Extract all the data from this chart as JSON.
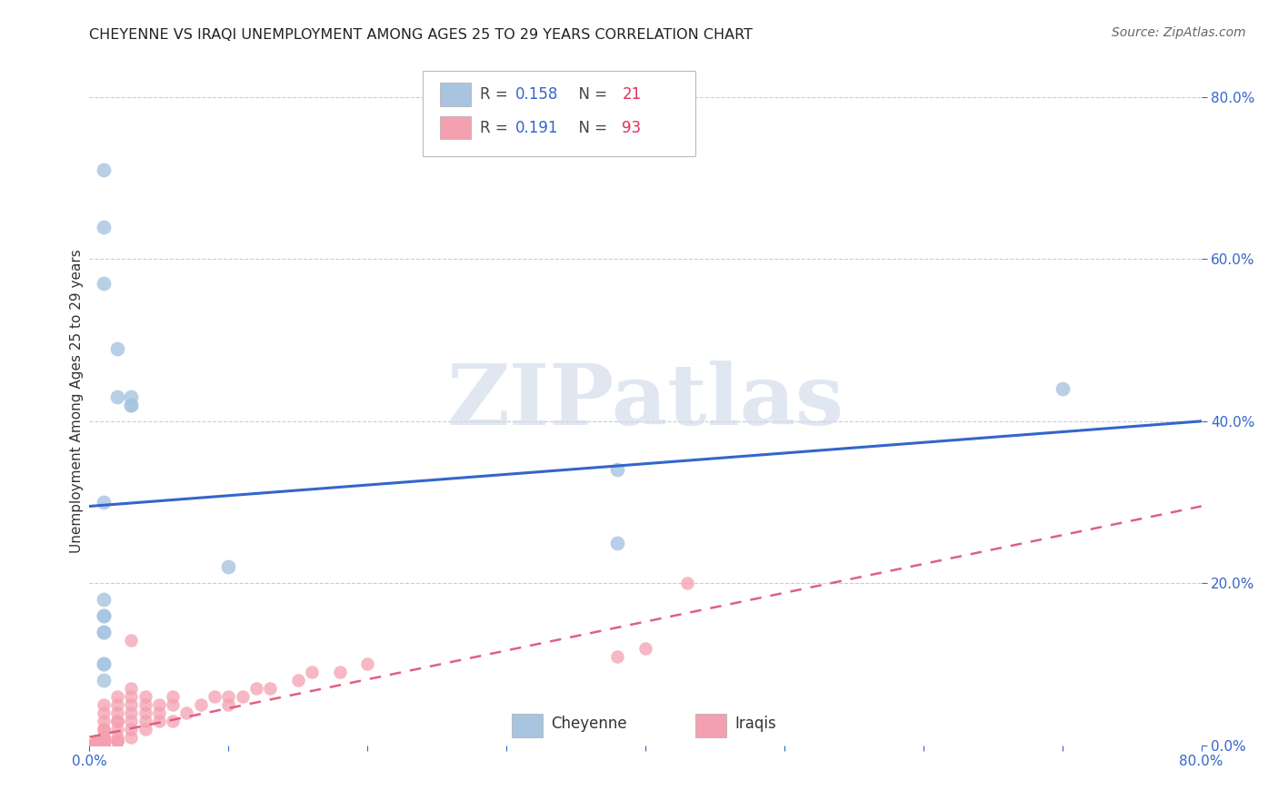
{
  "title": "CHEYENNE VS IRAQI UNEMPLOYMENT AMONG AGES 25 TO 29 YEARS CORRELATION CHART",
  "source": "Source: ZipAtlas.com",
  "ylabel": "Unemployment Among Ages 25 to 29 years",
  "xlim": [
    0.0,
    0.8
  ],
  "ylim": [
    0.0,
    0.85
  ],
  "cheyenne_x": [
    0.01,
    0.01,
    0.01,
    0.02,
    0.02,
    0.03,
    0.03,
    0.03,
    0.38,
    0.38,
    0.1,
    0.01,
    0.01,
    0.01,
    0.01,
    0.01,
    0.01,
    0.7,
    0.01,
    0.01,
    0.01
  ],
  "cheyenne_y": [
    0.71,
    0.64,
    0.57,
    0.49,
    0.43,
    0.43,
    0.42,
    0.42,
    0.34,
    0.25,
    0.22,
    0.18,
    0.16,
    0.16,
    0.14,
    0.14,
    0.1,
    0.44,
    0.3,
    0.1,
    0.08
  ],
  "iraqis_x": [
    0.0,
    0.0,
    0.0,
    0.0,
    0.0,
    0.0,
    0.0,
    0.0,
    0.0,
    0.0,
    0.0,
    0.0,
    0.0,
    0.0,
    0.0,
    0.005,
    0.005,
    0.005,
    0.005,
    0.005,
    0.005,
    0.005,
    0.005,
    0.005,
    0.005,
    0.005,
    0.005,
    0.005,
    0.01,
    0.01,
    0.01,
    0.01,
    0.01,
    0.01,
    0.01,
    0.01,
    0.01,
    0.01,
    0.01,
    0.01,
    0.01,
    0.01,
    0.01,
    0.01,
    0.01,
    0.01,
    0.01,
    0.01,
    0.01,
    0.02,
    0.02,
    0.02,
    0.02,
    0.02,
    0.02,
    0.02,
    0.02,
    0.02,
    0.02,
    0.03,
    0.03,
    0.03,
    0.03,
    0.03,
    0.03,
    0.03,
    0.03,
    0.04,
    0.04,
    0.04,
    0.04,
    0.04,
    0.05,
    0.05,
    0.05,
    0.06,
    0.06,
    0.06,
    0.07,
    0.08,
    0.09,
    0.1,
    0.1,
    0.11,
    0.12,
    0.13,
    0.15,
    0.16,
    0.18,
    0.2,
    0.38,
    0.4,
    0.43
  ],
  "iraqis_y": [
    0.0,
    0.0,
    0.0,
    0.0,
    0.0,
    0.0,
    0.0,
    0.0,
    0.0,
    0.0,
    0.0,
    0.0,
    0.0,
    0.0,
    0.0,
    0.0,
    0.0,
    0.0,
    0.0,
    0.0,
    0.0,
    0.0,
    0.0,
    0.0,
    0.005,
    0.005,
    0.005,
    0.005,
    0.0,
    0.0,
    0.0,
    0.0,
    0.0,
    0.0,
    0.0,
    0.0,
    0.005,
    0.005,
    0.005,
    0.005,
    0.01,
    0.01,
    0.01,
    0.01,
    0.02,
    0.02,
    0.03,
    0.04,
    0.05,
    0.005,
    0.005,
    0.005,
    0.01,
    0.02,
    0.03,
    0.03,
    0.04,
    0.05,
    0.06,
    0.01,
    0.02,
    0.03,
    0.04,
    0.05,
    0.06,
    0.07,
    0.13,
    0.02,
    0.03,
    0.04,
    0.05,
    0.06,
    0.03,
    0.04,
    0.05,
    0.03,
    0.05,
    0.06,
    0.04,
    0.05,
    0.06,
    0.05,
    0.06,
    0.06,
    0.07,
    0.07,
    0.08,
    0.09,
    0.09,
    0.1,
    0.11,
    0.12,
    0.2
  ],
  "cheyenne_color": "#a8c4e0",
  "iraqis_color": "#f4a0b0",
  "cheyenne_line_color": "#3366cc",
  "iraqis_line_color": "#e06080",
  "cheyenne_line_start_y": 0.295,
  "cheyenne_line_end_y": 0.4,
  "iraqis_line_start_y": 0.01,
  "iraqis_line_end_y": 0.295,
  "cheyenne_R": 0.158,
  "cheyenne_N": 21,
  "iraqis_R": 0.191,
  "iraqis_N": 93,
  "watermark_text": "ZIPatlas",
  "watermark_color": "#ccd8e8",
  "background_color": "#ffffff",
  "grid_color": "#cccccc"
}
